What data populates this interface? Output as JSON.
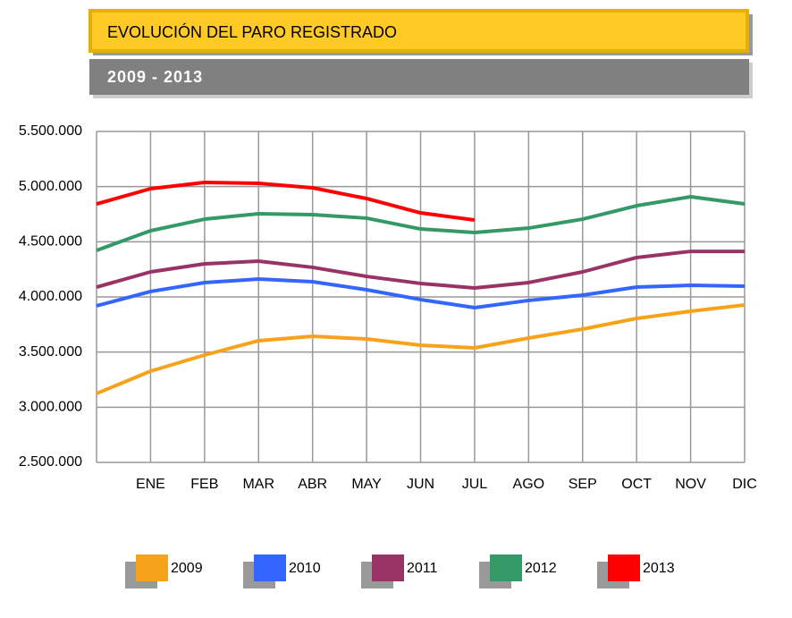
{
  "chart_data": {
    "type": "line",
    "title": "EVOLUCIÓN DEL PARO REGISTRADO",
    "subtitle": "2009 - 2013",
    "categories": [
      null,
      "ENE",
      "FEB",
      "MAR",
      "ABR",
      "MAY",
      "JUN",
      "JUL",
      "AGO",
      "SEP",
      "OCT",
      "NOV",
      "DIC"
    ],
    "series": [
      {
        "name": "2009",
        "color": "#f7a21b",
        "values": [
          3124000,
          3327000,
          3473000,
          3603000,
          3643000,
          3619000,
          3562000,
          3538000,
          3627000,
          3708000,
          3805000,
          3870000,
          3927000
        ]
      },
      {
        "name": "2010",
        "color": "#3366ff",
        "values": [
          3919000,
          4049000,
          4130000,
          4162000,
          4138000,
          4065000,
          3976000,
          3903000,
          3968000,
          4016000,
          4089000,
          4105000,
          4097000
        ]
      },
      {
        "name": "2011",
        "color": "#993366",
        "values": [
          4089000,
          4227000,
          4300000,
          4324000,
          4268000,
          4186000,
          4122000,
          4081000,
          4130000,
          4227000,
          4357000,
          4413000,
          4413000
        ]
      },
      {
        "name": "2012",
        "color": "#339966",
        "values": [
          4422000,
          4600000,
          4705000,
          4754000,
          4746000,
          4714000,
          4616000,
          4584000,
          4624000,
          4705000,
          4827000,
          4908000,
          4843000
        ]
      },
      {
        "name": "2013",
        "color": "#ff0000",
        "values": [
          4843000,
          4981000,
          5038000,
          5030000,
          4989000,
          4892000,
          4762000,
          4697000,
          null,
          null,
          null,
          null,
          null
        ]
      }
    ],
    "ylim": [
      2500000,
      5500000
    ],
    "yticks": [
      {
        "value": 2500000,
        "label": "2.500.000"
      },
      {
        "value": 3000000,
        "label": "3.000.000"
      },
      {
        "value": 3500000,
        "label": "3.500.000"
      },
      {
        "value": 4000000,
        "label": "4.000.000"
      },
      {
        "value": 4500000,
        "label": "4.500.000"
      },
      {
        "value": 5000000,
        "label": "5.000.000"
      },
      {
        "value": 5500000,
        "label": "5.500.000"
      }
    ],
    "grid": true
  }
}
